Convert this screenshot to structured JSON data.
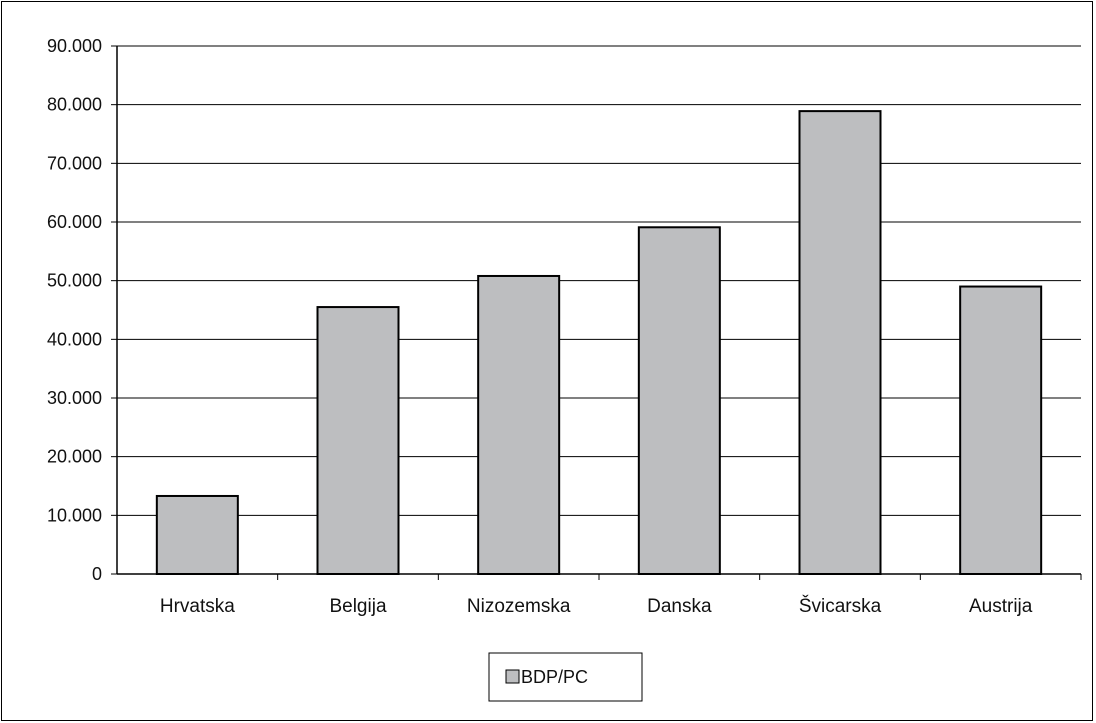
{
  "chart_data": {
    "type": "bar",
    "title": "",
    "xlabel": "",
    "ylabel": "",
    "categories": [
      "Hrvatska",
      "Belgija",
      "Nizozemska",
      "Danska",
      "Švicarska",
      "Austrija"
    ],
    "series": [
      {
        "name": "BDP/PC",
        "values": [
          13300,
          45500,
          50800,
          59100,
          78900,
          49000
        ]
      }
    ],
    "ylim": [
      0,
      90000
    ],
    "yticks": [
      0,
      10000,
      20000,
      30000,
      40000,
      50000,
      60000,
      70000,
      80000,
      90000
    ],
    "ytick_labels": [
      "0",
      "10.000",
      "20.000",
      "30.000",
      "40.000",
      "50.000",
      "60.000",
      "70.000",
      "80.000",
      "90.000"
    ],
    "grid": true,
    "legend": "bottom",
    "colors": {
      "bar_fill": "#bdbec0",
      "bar_stroke": "#000000",
      "grid": "#000000"
    }
  }
}
